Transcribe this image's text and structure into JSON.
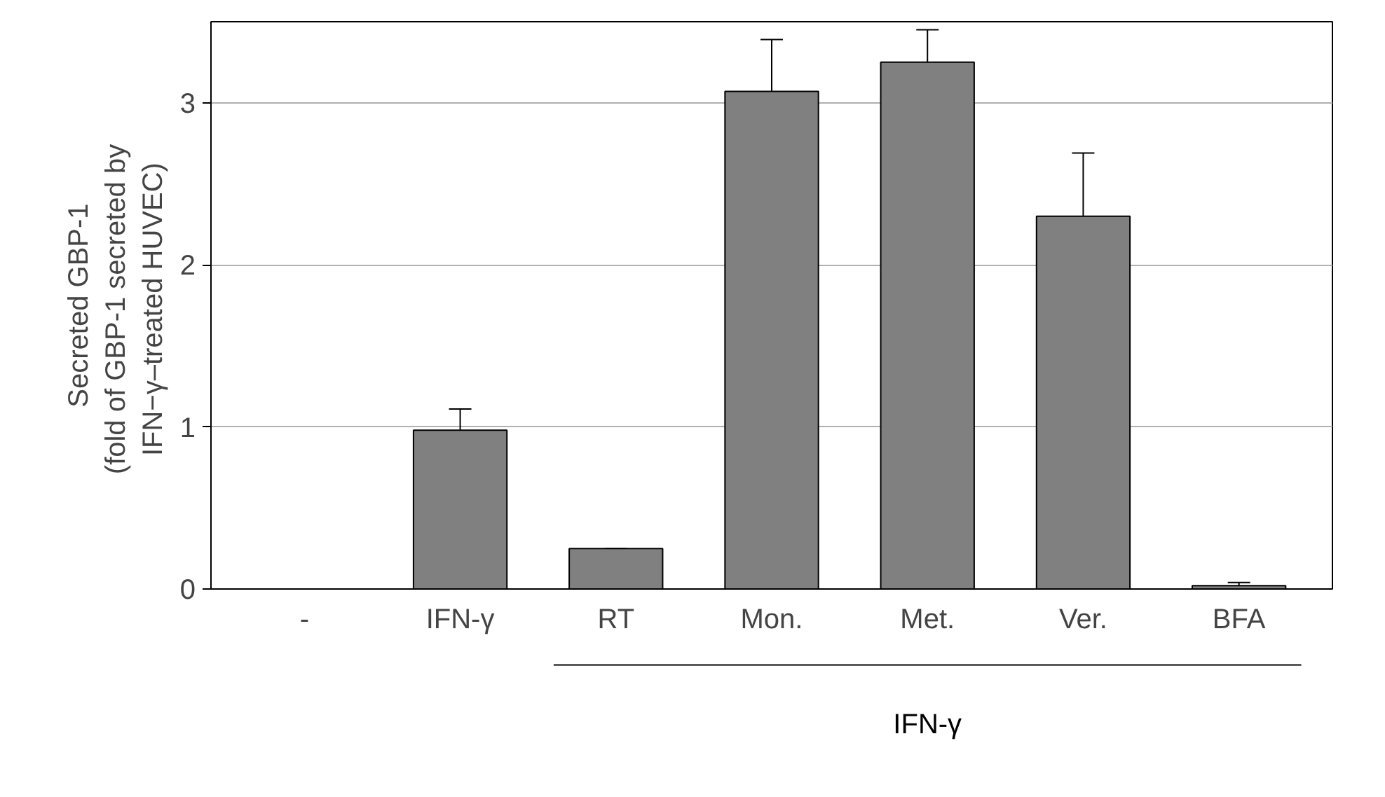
{
  "chart_data": {
    "type": "bar",
    "ylabel": "Secreted GBP-1\n(fold of  GBP-1 secreted by\nIFN−γ–treated  HUVEC)",
    "categories": [
      "-",
      "IFN-γ",
      "RT",
      "Mon.",
      "Met.",
      "Ver.",
      "BFA"
    ],
    "values": [
      0,
      0.98,
      0.25,
      3.07,
      3.25,
      2.3,
      0.02
    ],
    "errors": [
      null,
      [
        0.98,
        1.11
      ],
      [
        0.25,
        0.25
      ],
      [
        3.07,
        3.39
      ],
      [
        3.25,
        3.45
      ],
      [
        2.3,
        2.69
      ],
      [
        0.02,
        0.04
      ]
    ],
    "color": "#808080",
    "ylim": [
      0,
      3.5
    ],
    "yticks": [
      0,
      1,
      2,
      3
    ],
    "grid": "y",
    "annotations": [
      "IFN-γ"
    ]
  }
}
